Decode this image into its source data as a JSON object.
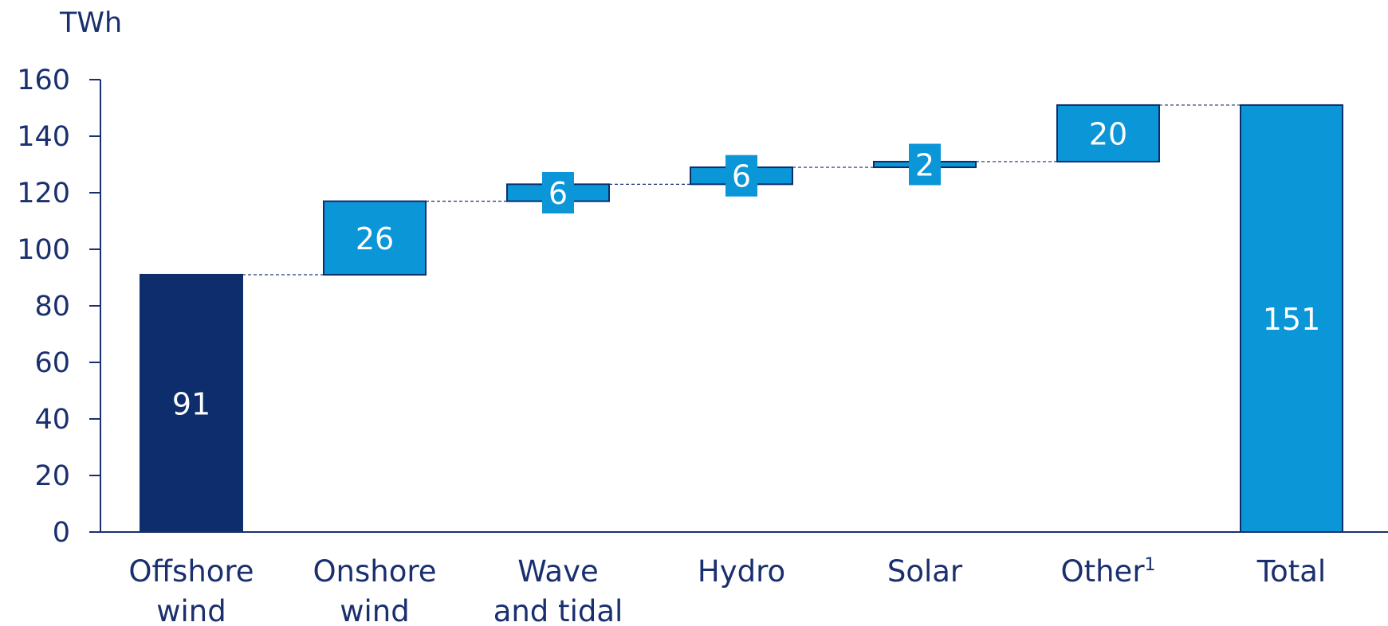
{
  "chart_data": {
    "type": "bar",
    "subtype": "waterfall",
    "unit_label": "TWh",
    "ylim": [
      0,
      160
    ],
    "yticks": [
      0,
      20,
      40,
      60,
      80,
      100,
      120,
      140,
      160
    ],
    "categories": [
      [
        "Offshore",
        "wind"
      ],
      [
        "Onshore",
        "wind"
      ],
      [
        "Wave",
        "and tidal"
      ],
      [
        "Hydro"
      ],
      [
        "Solar"
      ],
      [
        "Other",
        "1"
      ],
      [
        "Total"
      ]
    ],
    "values": [
      91,
      26,
      6,
      6,
      2,
      20,
      151
    ],
    "kinds": [
      "base",
      "increment",
      "increment",
      "increment",
      "increment",
      "increment",
      "total"
    ],
    "colors": {
      "base": "#0d2d6c",
      "increment": "#0b96d8",
      "total": "#0b96d8",
      "outline": "#0d2d6c",
      "axis": "#1a2f6e",
      "connector": "#1a2f6e",
      "label_box": "#0b96d8"
    }
  }
}
